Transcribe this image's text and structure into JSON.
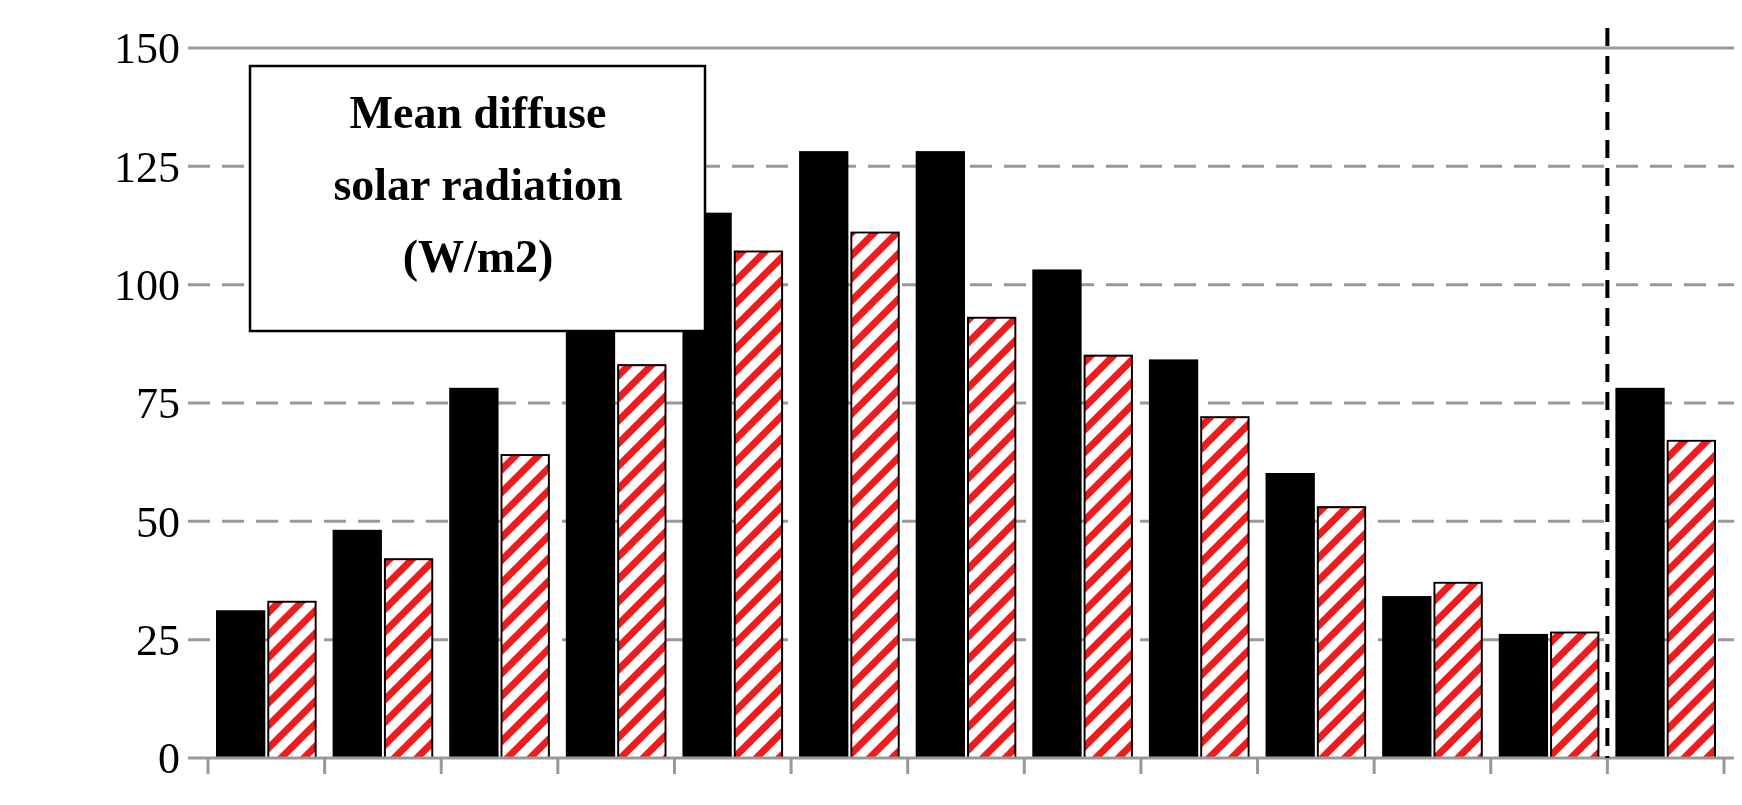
{
  "chart_data": {
    "type": "bar",
    "categories": [
      null,
      null,
      null,
      null,
      null,
      null,
      null,
      null,
      null,
      null,
      null,
      null,
      null
    ],
    "series": [
      {
        "color": "#000000",
        "values": [
          31,
          48,
          78,
          90,
          115,
          128,
          128,
          103,
          84,
          60,
          34,
          26,
          78
        ]
      },
      {
        "color": "#ee1c1c",
        "values": [
          33,
          42,
          64,
          83,
          107,
          111,
          93,
          85,
          72,
          53,
          37,
          26.5,
          67
        ]
      }
    ],
    "ylim": [
      0,
      150
    ],
    "yticks": [
      0,
      25,
      50,
      75,
      100,
      125,
      150
    ],
    "grid": "y",
    "annotations": [
      "Mean diffuse solar radiation (W/m2)"
    ]
  }
}
